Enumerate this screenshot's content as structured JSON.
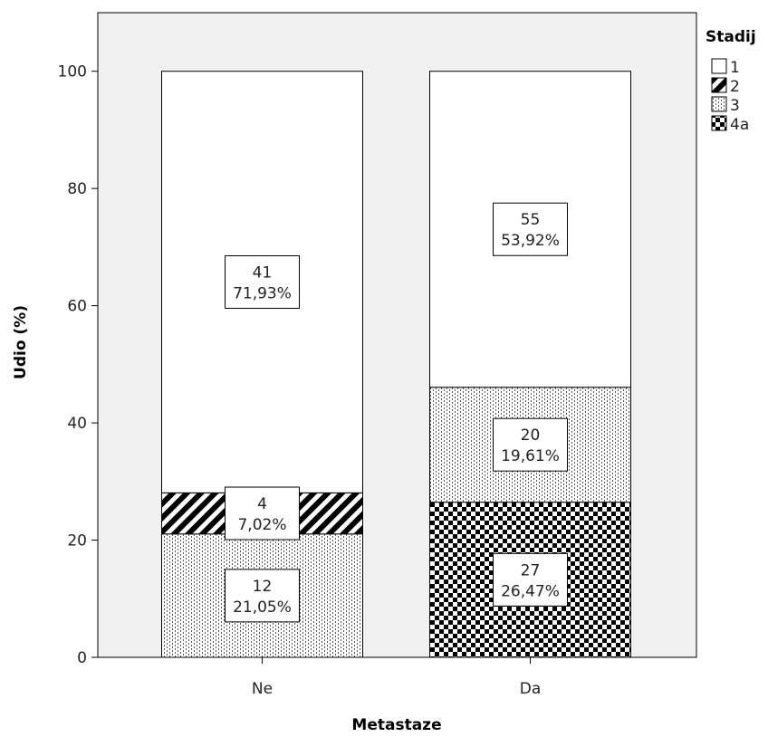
{
  "chart_data": {
    "type": "bar",
    "stacked": true,
    "xlabel": "Metastaze",
    "ylabel": "Udio (%)",
    "ylim": [
      0,
      110
    ],
    "yticks": [
      0,
      20,
      40,
      60,
      80,
      100
    ],
    "categories": [
      "Ne",
      "Da"
    ],
    "legend": {
      "title": "Stadij",
      "placement": "right"
    },
    "series": [
      {
        "name": "1",
        "pattern": "empty",
        "counts": [
          41,
          55
        ],
        "values": [
          71.93,
          53.92
        ],
        "labels": [
          "71,93%",
          "53,92%"
        ]
      },
      {
        "name": "2",
        "pattern": "diagonal-hatch",
        "counts": [
          4,
          0
        ],
        "values": [
          7.02,
          0
        ],
        "labels": [
          "7,02%",
          ""
        ]
      },
      {
        "name": "3",
        "pattern": "dotted-vertical",
        "counts": [
          12,
          20
        ],
        "values": [
          21.05,
          19.61
        ],
        "labels": [
          "21,05%",
          "19,61%"
        ]
      },
      {
        "name": "4a",
        "pattern": "checkerboard",
        "counts": [
          0,
          27
        ],
        "values": [
          0,
          26.47
        ],
        "labels": [
          "",
          "26,47%"
        ]
      }
    ],
    "stack_order": [
      "4a",
      "3",
      "2",
      "1"
    ],
    "colors": {
      "plot_background": "#f0f0f0",
      "bar_fill": "#ffffff",
      "stroke": "#000000"
    }
  }
}
